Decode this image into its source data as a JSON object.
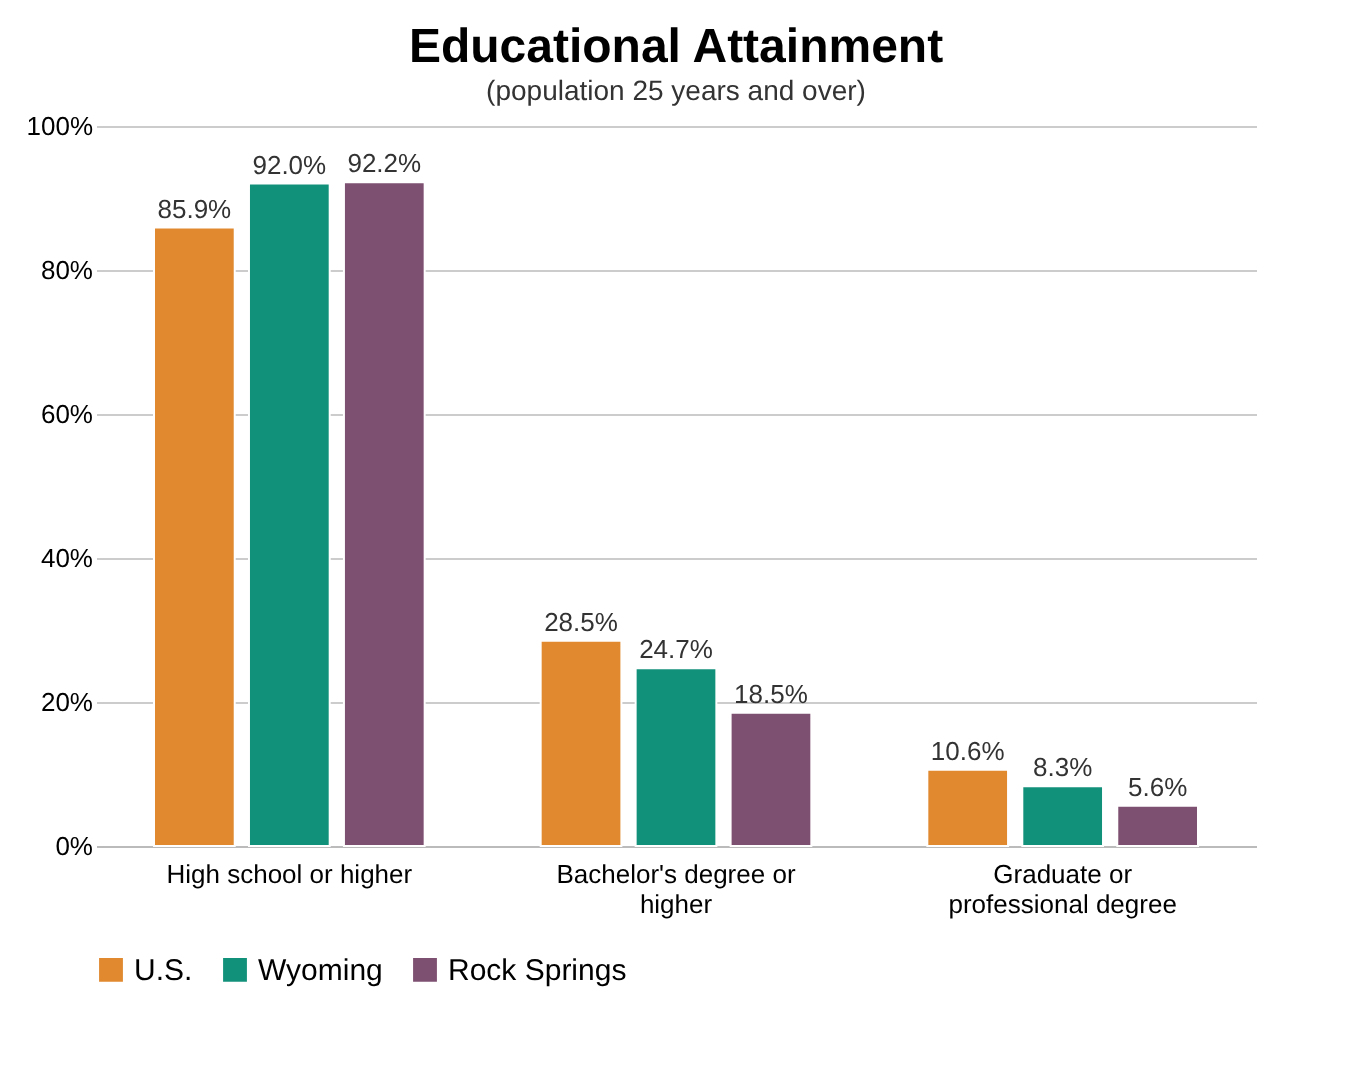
{
  "chart_data": {
    "type": "bar",
    "title": "Educational Attainment",
    "subtitle": "(population 25 years and over)",
    "categories": [
      "High school or higher",
      "Bachelor's degree or higher",
      "Graduate or professional degree"
    ],
    "series": [
      {
        "name": "U.S.",
        "color": "#e0892e",
        "values": [
          85.9,
          28.5,
          10.6
        ],
        "value_labels": [
          "85.9%",
          "28.5%",
          "10.6%"
        ]
      },
      {
        "name": "Wyoming",
        "color": "#12917a",
        "values": [
          92.0,
          24.7,
          8.3
        ],
        "value_labels": [
          "92.0%",
          "24.7%",
          "8.3%"
        ]
      },
      {
        "name": "Rock Springs",
        "color": "#7d4f70",
        "values": [
          92.2,
          18.5,
          5.6
        ],
        "value_labels": [
          "92.2%",
          "18.5%",
          "5.6%"
        ]
      }
    ],
    "ylim": [
      0,
      100
    ],
    "yticks": [
      {
        "value": 0,
        "label": "0%"
      },
      {
        "value": 20,
        "label": "20%"
      },
      {
        "value": 40,
        "label": "40%"
      },
      {
        "value": 60,
        "label": "60%"
      },
      {
        "value": 80,
        "label": "80%"
      },
      {
        "value": 100,
        "label": "100%"
      }
    ],
    "grid": "y",
    "legend": "bottom"
  }
}
